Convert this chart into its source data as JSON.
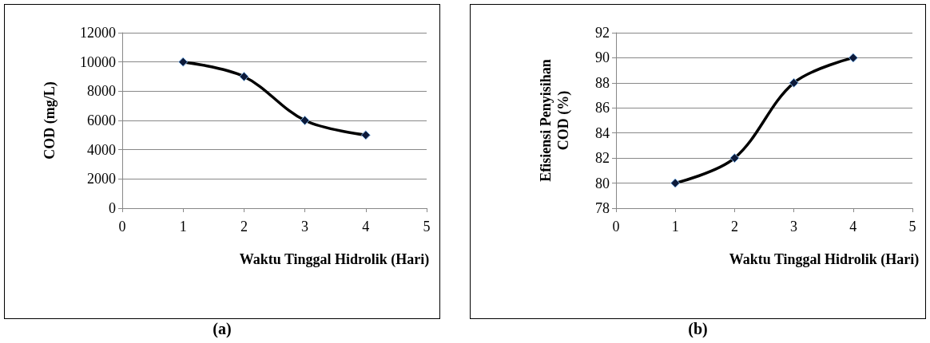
{
  "chart_data": [
    {
      "type": "line",
      "xlabel": "Waktu Tinggal Hidrolik (Hari)",
      "ylabel": "COD (mg/L)",
      "x": [
        1,
        2,
        3,
        4
      ],
      "series": [
        {
          "color": "#000000",
          "values": [
            10000,
            9000,
            6000,
            5000
          ]
        }
      ],
      "xlim": [
        0,
        5
      ],
      "xticks": [
        0,
        1,
        2,
        3,
        4,
        5
      ],
      "ylim": [
        0,
        12000
      ],
      "yticks": [
        0,
        2000,
        4000,
        6000,
        8000,
        10000,
        12000
      ],
      "grid": "y",
      "marker": "diamond",
      "line_style": "solid",
      "annotations": [
        "(a)"
      ]
    },
    {
      "type": "line",
      "xlabel": "Waktu Tinggal Hidrolik (Hari)",
      "ylabel": "Efisiensi Penyisihan COD (%)",
      "x": [
        1,
        2,
        3,
        4
      ],
      "series": [
        {
          "color": "#000000",
          "values": [
            80,
            82,
            88,
            90
          ]
        }
      ],
      "xlim": [
        0,
        5
      ],
      "xticks": [
        0,
        1,
        2,
        3,
        4,
        5
      ],
      "ylim": [
        78,
        92
      ],
      "yticks": [
        78,
        80,
        82,
        84,
        86,
        88,
        90,
        92
      ],
      "grid": "y",
      "marker": "diamond",
      "line_style": "solid",
      "annotations": [
        "(b)"
      ]
    }
  ]
}
